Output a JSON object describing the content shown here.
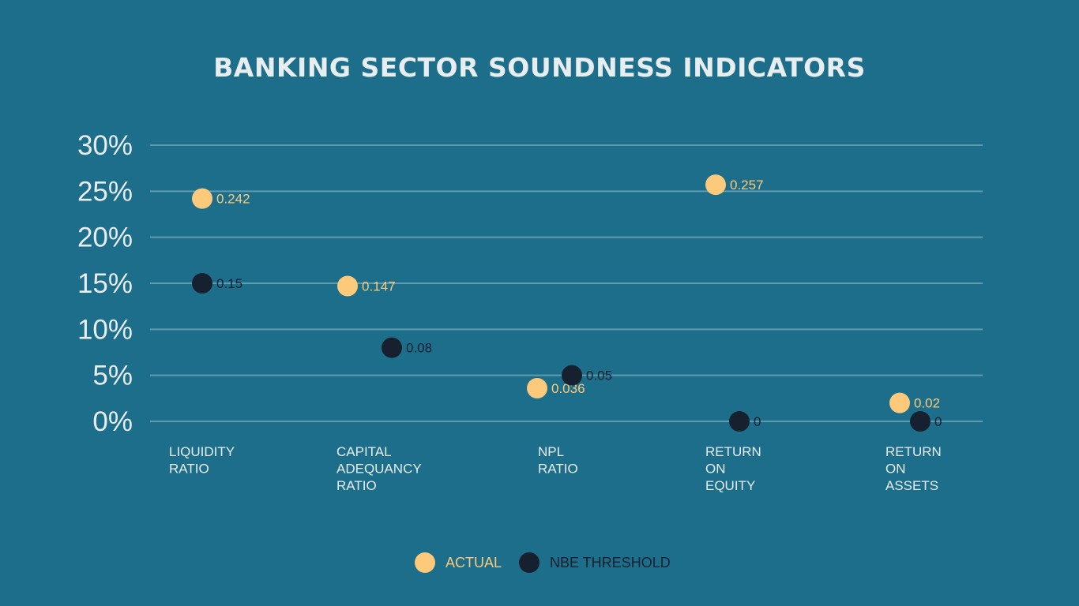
{
  "chart_data": {
    "type": "scatter",
    "title": "BANKING SECTOR SOUNDNESS INDICATORS",
    "categories": [
      [
        "LIQUIDITY",
        "RATIO"
      ],
      [
        "CAPITAL",
        "ADEQUANCY",
        "RATIO"
      ],
      [
        "NPL",
        "RATIO"
      ],
      [
        "RETURN",
        "ON",
        "EQUITY"
      ],
      [
        "RETURN",
        "ON",
        "ASSETS"
      ]
    ],
    "series": [
      {
        "name": "ACTUAL",
        "color": "#fdc97a",
        "values": [
          0.242,
          0.147,
          0.036,
          0.257,
          0.02
        ],
        "labels": [
          "0.242",
          "0.147",
          "0.036",
          "0.257",
          "0.02"
        ]
      },
      {
        "name": "NBE THRESHOLD",
        "color": "#16202e",
        "values": [
          0.15,
          0.08,
          0.05,
          0,
          0
        ],
        "labels": [
          "0.15",
          "0.08",
          "0.05",
          "0",
          "0"
        ]
      }
    ],
    "ylim": [
      0,
      0.3
    ],
    "yticks": [
      {
        "value": 0.3,
        "label": "30%"
      },
      {
        "value": 0.25,
        "label": "25%"
      },
      {
        "value": 0.2,
        "label": "20%"
      },
      {
        "value": 0.15,
        "label": "15%"
      },
      {
        "value": 0.1,
        "label": "10%"
      },
      {
        "value": 0.05,
        "label": "5%"
      },
      {
        "value": 0.0,
        "label": "0%"
      }
    ],
    "grid": true,
    "legend_position": "bottom-center",
    "background": "#1c6e8a"
  }
}
